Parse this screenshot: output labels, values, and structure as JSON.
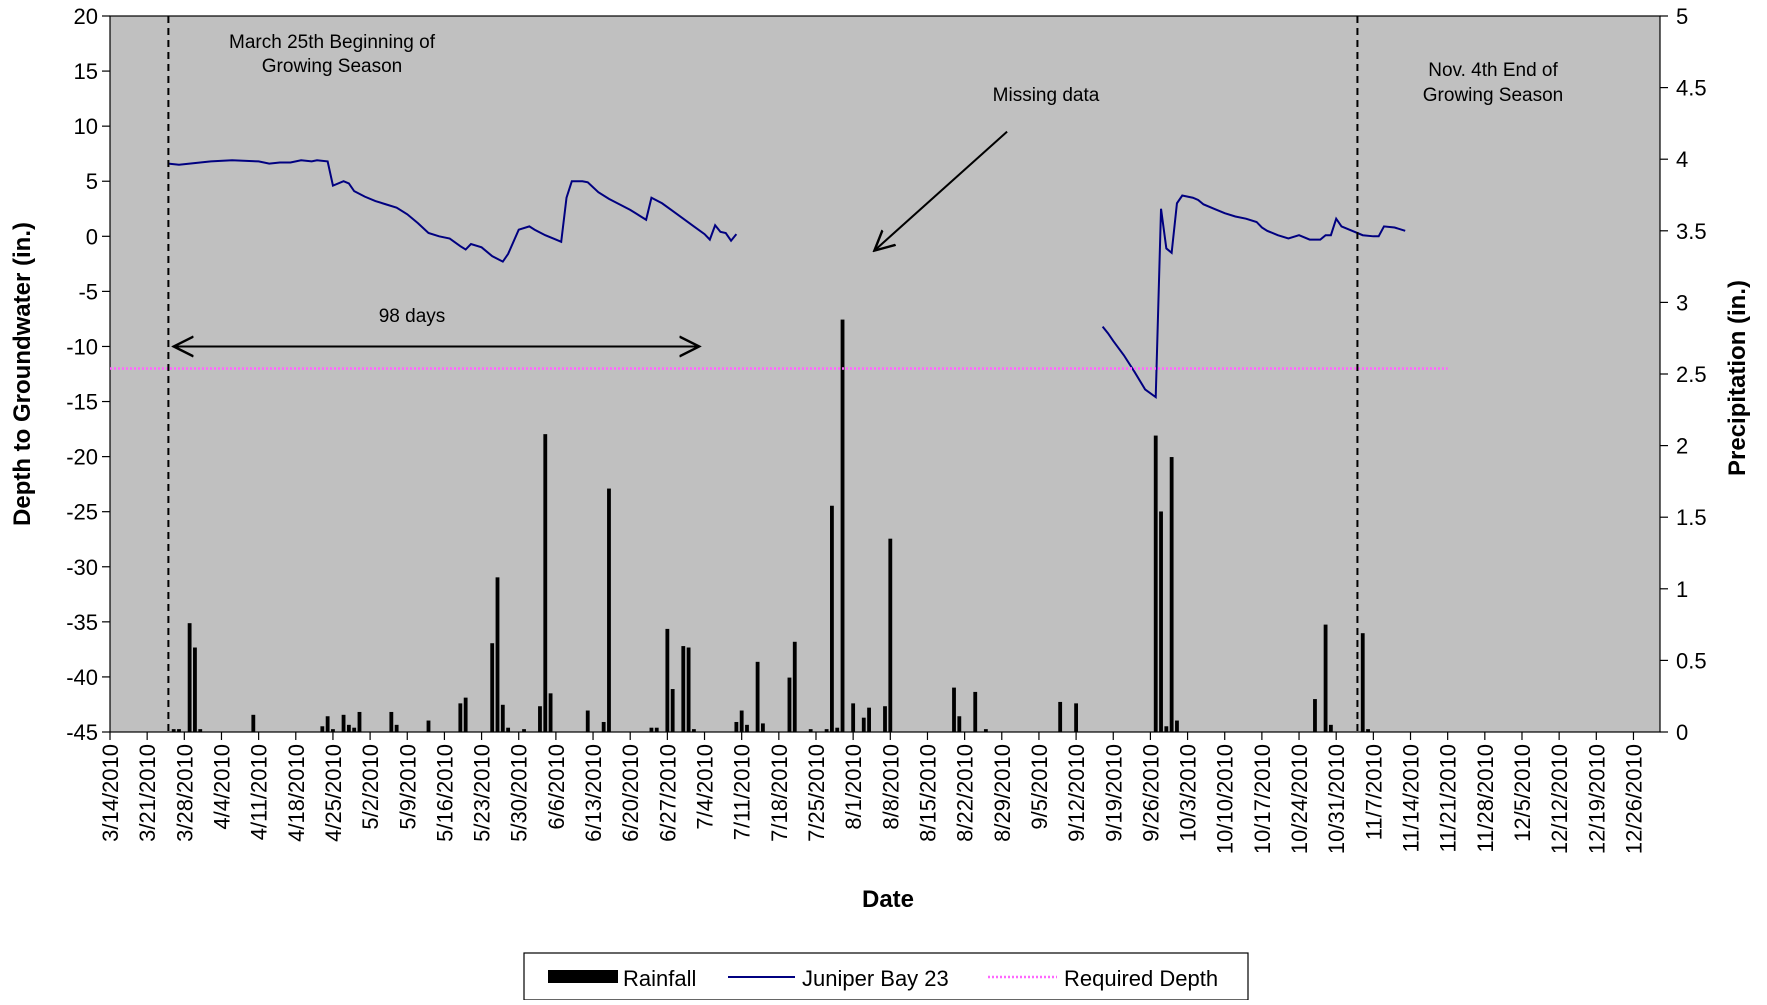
{
  "chart_data": {
    "type": "line",
    "xlabel": "Date",
    "ylabel_left": "Depth to Groundwater (in.)",
    "ylabel_right": "Precipitation (in.)",
    "ylim_left": [
      -45,
      20
    ],
    "ylim_right": [
      0,
      5
    ],
    "y_ticks_left": [
      "20",
      "15",
      "10",
      "5",
      "0",
      "-5",
      "-10",
      "-15",
      "-20",
      "-25",
      "-30",
      "-35",
      "-40",
      "-45"
    ],
    "y_ticks_right": [
      "5",
      "4.5",
      "4",
      "3.5",
      "3",
      "2.5",
      "2",
      "1.5",
      "1",
      "0.5",
      "0"
    ],
    "x_range": [
      "2010-03-14",
      "2010-12-31"
    ],
    "x_ticks": [
      "3/14/2010",
      "3/21/2010",
      "3/28/2010",
      "4/4/2010",
      "4/11/2010",
      "4/18/2010",
      "4/25/2010",
      "5/2/2010",
      "5/9/2010",
      "5/16/2010",
      "5/23/2010",
      "5/30/2010",
      "6/6/2010",
      "6/13/2010",
      "6/20/2010",
      "6/27/2010",
      "7/4/2010",
      "7/11/2010",
      "7/18/2010",
      "7/25/2010",
      "8/1/2010",
      "8/8/2010",
      "8/15/2010",
      "8/22/2010",
      "8/29/2010",
      "9/5/2010",
      "9/12/2010",
      "9/19/2010",
      "9/26/2010",
      "10/3/2010",
      "10/10/2010",
      "10/17/2010",
      "10/24/2010",
      "10/31/2010",
      "11/7/2010",
      "11/14/2010",
      "11/21/2010",
      "11/28/2010",
      "12/5/2010",
      "12/12/2010",
      "12/19/2010",
      "12/26/2010"
    ],
    "grid": false,
    "legend_position": "bottom",
    "plot_background": "#c0c0c0",
    "series": [
      {
        "name": "Rainfall",
        "kind": "bar",
        "axis": "right",
        "color": "#000000",
        "points": [
          [
            "2010-03-26",
            0.02
          ],
          [
            "2010-03-27",
            0.02
          ],
          [
            "2010-03-29",
            0.76
          ],
          [
            "2010-03-30",
            0.59
          ],
          [
            "2010-03-31",
            0.02
          ],
          [
            "2010-04-10",
            0.12
          ],
          [
            "2010-04-23",
            0.04
          ],
          [
            "2010-04-24",
            0.11
          ],
          [
            "2010-04-25",
            0.02
          ],
          [
            "2010-04-27",
            0.12
          ],
          [
            "2010-04-28",
            0.05
          ],
          [
            "2010-04-29",
            0.03
          ],
          [
            "2010-04-30",
            0.14
          ],
          [
            "2010-05-06",
            0.14
          ],
          [
            "2010-05-07",
            0.05
          ],
          [
            "2010-05-13",
            0.08
          ],
          [
            "2010-05-19",
            0.2
          ],
          [
            "2010-05-20",
            0.24
          ],
          [
            "2010-05-25",
            0.62
          ],
          [
            "2010-05-26",
            1.08
          ],
          [
            "2010-05-27",
            0.19
          ],
          [
            "2010-05-28",
            0.03
          ],
          [
            "2010-05-31",
            0.02
          ],
          [
            "2010-06-03",
            0.18
          ],
          [
            "2010-06-04",
            2.08
          ],
          [
            "2010-06-05",
            0.27
          ],
          [
            "2010-06-12",
            0.15
          ],
          [
            "2010-06-15",
            0.07
          ],
          [
            "2010-06-16",
            1.7
          ],
          [
            "2010-06-24",
            0.03
          ],
          [
            "2010-06-25",
            0.03
          ],
          [
            "2010-06-27",
            0.72
          ],
          [
            "2010-06-28",
            0.3
          ],
          [
            "2010-06-30",
            0.6
          ],
          [
            "2010-07-01",
            0.59
          ],
          [
            "2010-07-02",
            0.02
          ],
          [
            "2010-07-10",
            0.07
          ],
          [
            "2010-07-11",
            0.15
          ],
          [
            "2010-07-12",
            0.05
          ],
          [
            "2010-07-14",
            0.49
          ],
          [
            "2010-07-15",
            0.06
          ],
          [
            "2010-07-20",
            0.38
          ],
          [
            "2010-07-21",
            0.63
          ],
          [
            "2010-07-24",
            0.02
          ],
          [
            "2010-07-27",
            0.02
          ],
          [
            "2010-07-28",
            1.58
          ],
          [
            "2010-07-29",
            0.03
          ],
          [
            "2010-07-30",
            2.88
          ],
          [
            "2010-08-01",
            0.2
          ],
          [
            "2010-08-03",
            0.1
          ],
          [
            "2010-08-04",
            0.17
          ],
          [
            "2010-08-07",
            0.18
          ],
          [
            "2010-08-08",
            1.35
          ],
          [
            "2010-08-20",
            0.31
          ],
          [
            "2010-08-21",
            0.11
          ],
          [
            "2010-08-24",
            0.28
          ],
          [
            "2010-08-26",
            0.02
          ],
          [
            "2010-09-09",
            0.21
          ],
          [
            "2010-09-12",
            0.2
          ],
          [
            "2010-09-27",
            2.07
          ],
          [
            "2010-09-28",
            1.54
          ],
          [
            "2010-09-29",
            0.04
          ],
          [
            "2010-09-30",
            1.92
          ],
          [
            "2010-10-01",
            0.08
          ],
          [
            "2010-10-27",
            0.23
          ],
          [
            "2010-10-29",
            0.75
          ],
          [
            "2010-10-30",
            0.05
          ],
          [
            "2010-11-05",
            0.69
          ],
          [
            "2010-11-06",
            0.02
          ]
        ]
      },
      {
        "name": "Juniper Bay 23",
        "kind": "line",
        "axis": "left",
        "color": "#000080",
        "segments": [
          [
            [
              "2010-03-25",
              6.6
            ],
            [
              "2010-03-27",
              6.5
            ],
            [
              "2010-03-29",
              6.6
            ],
            [
              "2010-03-31",
              6.7
            ],
            [
              "2010-04-02",
              6.8
            ],
            [
              "2010-04-06",
              6.9
            ],
            [
              "2010-04-11",
              6.8
            ],
            [
              "2010-04-13",
              6.6
            ],
            [
              "2010-04-15",
              6.7
            ],
            [
              "2010-04-17",
              6.7
            ],
            [
              "2010-04-19",
              6.9
            ],
            [
              "2010-04-21",
              6.8
            ],
            [
              "2010-04-22",
              6.9
            ],
            [
              "2010-04-24",
              6.8
            ],
            [
              "2010-04-25",
              4.6
            ],
            [
              "2010-04-27",
              5.0
            ],
            [
              "2010-04-28",
              4.8
            ],
            [
              "2010-04-29",
              4.1
            ],
            [
              "2010-05-01",
              3.6
            ],
            [
              "2010-05-03",
              3.2
            ],
            [
              "2010-05-05",
              2.9
            ],
            [
              "2010-05-07",
              2.6
            ],
            [
              "2010-05-09",
              2.0
            ],
            [
              "2010-05-11",
              1.2
            ],
            [
              "2010-05-13",
              0.3
            ],
            [
              "2010-05-15",
              0.0
            ],
            [
              "2010-05-17",
              -0.2
            ],
            [
              "2010-05-19",
              -0.9
            ],
            [
              "2010-05-20",
              -1.2
            ],
            [
              "2010-05-21",
              -0.7
            ],
            [
              "2010-05-23",
              -1.0
            ],
            [
              "2010-05-25",
              -1.8
            ],
            [
              "2010-05-27",
              -2.3
            ],
            [
              "2010-05-28",
              -1.6
            ],
            [
              "2010-05-30",
              0.6
            ],
            [
              "2010-06-01",
              0.9
            ],
            [
              "2010-06-02",
              0.6
            ],
            [
              "2010-06-04",
              0.1
            ],
            [
              "2010-06-06",
              -0.3
            ],
            [
              "2010-06-07",
              -0.5
            ],
            [
              "2010-06-08",
              3.5
            ],
            [
              "2010-06-09",
              5.0
            ],
            [
              "2010-06-11",
              5.0
            ],
            [
              "2010-06-12",
              4.9
            ],
            [
              "2010-06-14",
              4.0
            ],
            [
              "2010-06-16",
              3.4
            ],
            [
              "2010-06-18",
              2.9
            ],
            [
              "2010-06-20",
              2.4
            ],
            [
              "2010-06-22",
              1.8
            ],
            [
              "2010-06-23",
              1.5
            ],
            [
              "2010-06-24",
              3.5
            ],
            [
              "2010-06-26",
              3.0
            ],
            [
              "2010-06-28",
              2.3
            ],
            [
              "2010-06-30",
              1.6
            ],
            [
              "2010-07-02",
              0.9
            ],
            [
              "2010-07-04",
              0.2
            ],
            [
              "2010-07-05",
              -0.3
            ],
            [
              "2010-07-06",
              1.0
            ],
            [
              "2010-07-07",
              0.4
            ],
            [
              "2010-07-08",
              0.3
            ],
            [
              "2010-07-09",
              -0.4
            ],
            [
              "2010-07-10",
              0.2
            ]
          ],
          [
            [
              "2010-09-17",
              -8.2
            ],
            [
              "2010-09-18",
              -8.8
            ],
            [
              "2010-09-19",
              -9.5
            ],
            [
              "2010-09-21",
              -10.8
            ],
            [
              "2010-09-23",
              -12.3
            ],
            [
              "2010-09-25",
              -13.9
            ],
            [
              "2010-09-27",
              -14.6
            ],
            [
              "2010-09-28",
              2.5
            ],
            [
              "2010-09-29",
              -1.1
            ],
            [
              "2010-09-30",
              -1.5
            ],
            [
              "2010-10-01",
              3.0
            ],
            [
              "2010-10-02",
              3.7
            ],
            [
              "2010-10-03",
              3.6
            ],
            [
              "2010-10-04",
              3.5
            ],
            [
              "2010-10-05",
              3.3
            ],
            [
              "2010-10-06",
              2.9
            ],
            [
              "2010-10-08",
              2.5
            ],
            [
              "2010-10-10",
              2.1
            ],
            [
              "2010-10-12",
              1.8
            ],
            [
              "2010-10-14",
              1.6
            ],
            [
              "2010-10-16",
              1.3
            ],
            [
              "2010-10-17",
              0.8
            ],
            [
              "2010-10-18",
              0.5
            ],
            [
              "2010-10-20",
              0.1
            ],
            [
              "2010-10-22",
              -0.2
            ],
            [
              "2010-10-24",
              0.1
            ],
            [
              "2010-10-26",
              -0.3
            ],
            [
              "2010-10-28",
              -0.3
            ],
            [
              "2010-10-29",
              0.1
            ],
            [
              "2010-10-30",
              0.1
            ],
            [
              "2010-10-31",
              1.6
            ],
            [
              "2010-11-01",
              0.9
            ],
            [
              "2010-11-03",
              0.5
            ],
            [
              "2010-11-05",
              0.1
            ],
            [
              "2010-11-07",
              0.0
            ],
            [
              "2010-11-08",
              0.0
            ],
            [
              "2010-11-09",
              0.9
            ],
            [
              "2010-11-11",
              0.8
            ],
            [
              "2010-11-13",
              0.5
            ]
          ]
        ]
      },
      {
        "name": "Required Depth",
        "kind": "line",
        "axis": "left",
        "style": "dotted",
        "color": "#ff66ff",
        "points": [
          [
            "2010-03-14",
            -12
          ],
          [
            "2010-11-21",
            -12
          ]
        ]
      }
    ],
    "annotations": {
      "begin_line_date": "2010-03-25",
      "end_line_date": "2010-11-04",
      "begin_text": [
        "March 25th Beginning of",
        "Growing Season"
      ],
      "end_text": [
        "Nov. 4th End of",
        "Growing Season"
      ],
      "missing_text": "Missing data",
      "days_text": "98 days",
      "days_arrow": [
        [
          "2010-03-26",
          -10
        ],
        [
          "2010-07-03",
          -10
        ]
      ],
      "missing_arrow": [
        [
          "2010-08-30",
          9.5
        ],
        [
          "2010-08-05",
          -1.3
        ]
      ]
    }
  }
}
